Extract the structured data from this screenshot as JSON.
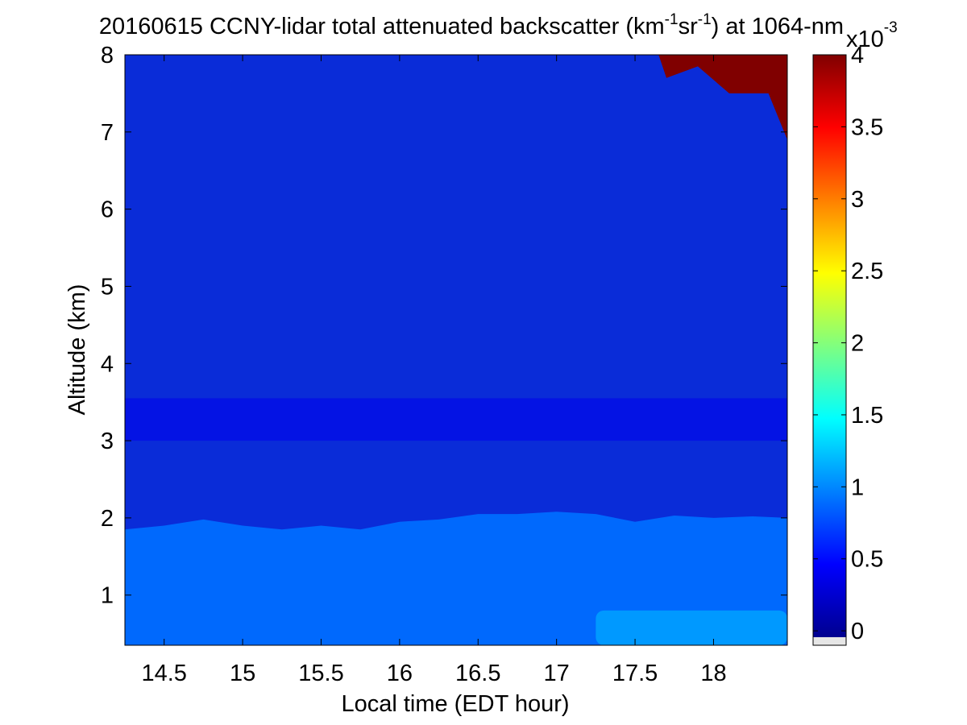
{
  "chart_data": {
    "type": "heatmap",
    "title": "20160615 CCNY-lidar total attenuated backscatter (km",
    "title_sup1": "-1",
    "title_mid": "sr",
    "title_sup2": "-1",
    "title_end": ") at 1064-nm",
    "xlabel": "Local time (EDT hour)",
    "ylabel": "Altitude (km)",
    "xlim": [
      14.25,
      18.47
    ],
    "ylim": [
      0.35,
      8
    ],
    "xticks": [
      "14.5",
      "15",
      "15.5",
      "16",
      "16.5",
      "17",
      "17.5",
      "18"
    ],
    "yticks": [
      "1",
      "2",
      "3",
      "4",
      "5",
      "6",
      "7",
      "8"
    ],
    "colorbar": {
      "range": [
        -0.1,
        4
      ],
      "ticks": [
        "0",
        "0.5",
        "1",
        "1.5",
        "2",
        "2.5",
        "3",
        "3.5",
        "4"
      ],
      "exponent_base": "x10",
      "exponent_power": "-3",
      "colormap": "jet"
    },
    "features": {
      "boundary_layer_top_km": [
        [
          14.25,
          1.85
        ],
        [
          14.5,
          1.9
        ],
        [
          14.75,
          1.98
        ],
        [
          15.0,
          1.9
        ],
        [
          15.25,
          1.85
        ],
        [
          15.5,
          1.9
        ],
        [
          15.75,
          1.85
        ],
        [
          16.0,
          1.95
        ],
        [
          16.25,
          1.98
        ],
        [
          16.5,
          2.05
        ],
        [
          16.75,
          2.05
        ],
        [
          17.0,
          2.08
        ],
        [
          17.25,
          2.05
        ],
        [
          17.5,
          1.95
        ],
        [
          17.75,
          2.03
        ],
        [
          18.0,
          2.0
        ],
        [
          18.25,
          2.02
        ],
        [
          18.47,
          2.0
        ]
      ],
      "boundary_layer_value": 0.85,
      "elevated_layer_km": [
        3.0,
        3.55
      ],
      "elevated_layer_value": 0.35,
      "lower_layer_km": [
        0.35,
        0.8
      ],
      "lower_layer_time": [
        17.25,
        18.47
      ],
      "lower_layer_value": 1.05,
      "cloud_value": 4,
      "cloud_region": {
        "time": [
          17.65,
          18.47
        ],
        "altitude": [
          6.9,
          8
        ]
      }
    }
  }
}
